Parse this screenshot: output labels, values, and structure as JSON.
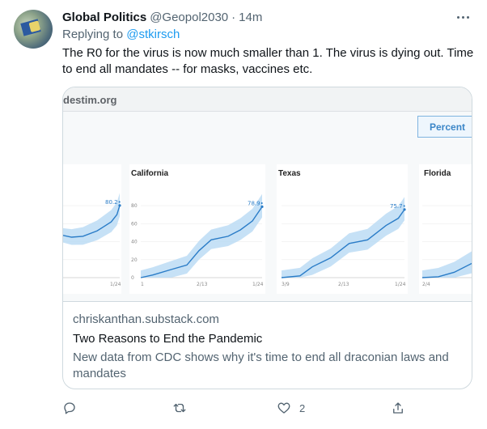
{
  "tweet": {
    "display_name": "Global Politics",
    "handle": "@Geopol2030",
    "separator": "·",
    "time": "14m",
    "reply_prefix": "Replying to ",
    "reply_to": "@stkirsch",
    "text": "The R0 for the virus is now much smaller than 1. The virus is dying out. Time to end all mandates -- for masks, vaccines etc."
  },
  "card": {
    "image": {
      "site_url": "destim.org",
      "percent_tab": "Percent",
      "panels": [
        {
          "title": "",
          "end_value": "80.2",
          "x_ticks": [
            "",
            "1/24"
          ],
          "y_ticks": [],
          "line": [
            [
              0,
              47
            ],
            [
              0.15,
              45
            ],
            [
              0.35,
              46
            ],
            [
              0.6,
              52
            ],
            [
              0.85,
              62
            ],
            [
              0.95,
              70
            ],
            [
              1,
              80.2
            ]
          ]
        },
        {
          "title": "California",
          "end_value": "78.9",
          "x_ticks": [
            "1",
            "2/13",
            "1/24"
          ],
          "y_ticks": [
            "0",
            "20",
            "40",
            "60",
            "80"
          ],
          "line": [
            [
              0,
              0
            ],
            [
              0.1,
              3
            ],
            [
              0.25,
              9
            ],
            [
              0.38,
              14
            ],
            [
              0.48,
              30
            ],
            [
              0.58,
              42
            ],
            [
              0.72,
              46
            ],
            [
              0.82,
              53
            ],
            [
              0.92,
              63
            ],
            [
              1,
              78.9
            ]
          ]
        },
        {
          "title": "Texas",
          "end_value": "75.7",
          "x_ticks": [
            "3/9",
            "2/13",
            "1/24"
          ],
          "y_ticks": [],
          "line": [
            [
              0,
              0
            ],
            [
              0.15,
              2
            ],
            [
              0.25,
              12
            ],
            [
              0.4,
              22
            ],
            [
              0.55,
              38
            ],
            [
              0.7,
              42
            ],
            [
              0.85,
              58
            ],
            [
              0.95,
              66
            ],
            [
              1,
              75.7
            ]
          ]
        },
        {
          "title": "Florida",
          "end_value": "",
          "x_ticks": [
            "2/4"
          ],
          "y_ticks": [],
          "line": [
            [
              0,
              0
            ],
            [
              0.3,
              1
            ],
            [
              0.6,
              6
            ],
            [
              1,
              18
            ]
          ]
        }
      ]
    },
    "domain": "chriskanthan.substack.com",
    "title": "Two Reasons to End the Pandemic",
    "description": "New data from CDC shows why it's time to end all draconian laws and mandates"
  },
  "actions": {
    "reply_count": "",
    "retweet_count": "",
    "like_count": "2",
    "icons": [
      "reply-icon",
      "retweet-icon",
      "like-icon",
      "share-icon"
    ]
  },
  "colors": {
    "link": "#1d9bf0",
    "secondary_text": "#536471",
    "chart_line": "#2a7cc7",
    "chart_band": "#bcdcf5"
  }
}
